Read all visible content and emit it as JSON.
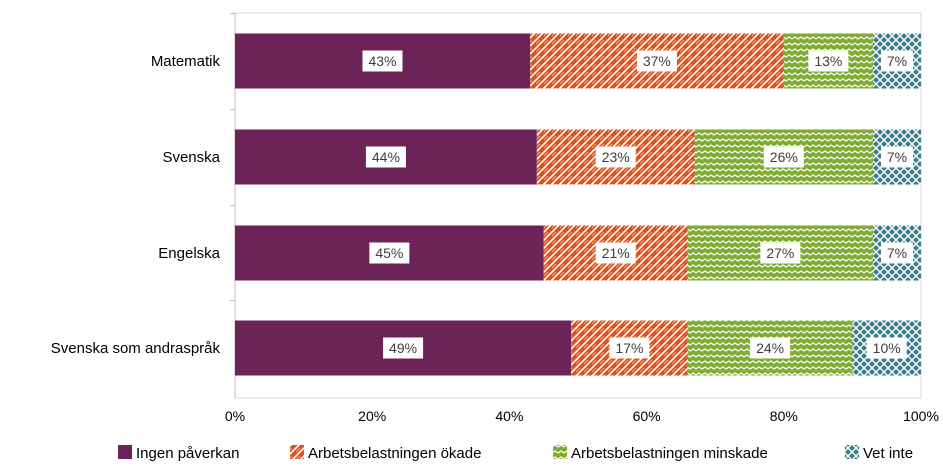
{
  "chart_data": {
    "type": "bar",
    "orientation": "horizontal",
    "stacked": "percent",
    "categories": [
      "Matematik",
      "Svenska",
      "Engelska",
      "Svenska som andraspråk"
    ],
    "series": [
      {
        "name": "Ingen påverkan",
        "values": [
          43,
          44,
          45,
          49
        ],
        "color": "#6b2358",
        "pattern": "solid"
      },
      {
        "name": "Arbetsbelastningen ökade",
        "values": [
          37,
          23,
          21,
          17
        ],
        "color": "#d9541e",
        "pattern": "diagonal-zigzag"
      },
      {
        "name": "Arbetsbelastningen minskade",
        "values": [
          13,
          26,
          27,
          24
        ],
        "color": "#7fad34",
        "pattern": "wave"
      },
      {
        "name": "Vet inte",
        "values": [
          7,
          7,
          7,
          10
        ],
        "color": "#3b7b8c",
        "pattern": "trellis"
      }
    ],
    "data_labels": [
      [
        "43%",
        "37%",
        "13%",
        "7%"
      ],
      [
        "44%",
        "23%",
        "26%",
        "7%"
      ],
      [
        "45%",
        "21%",
        "27%",
        "7%"
      ],
      [
        "49%",
        "17%",
        "24%",
        "10%"
      ]
    ],
    "x_ticks": [
      "0%",
      "20%",
      "40%",
      "60%",
      "80%",
      "100%"
    ],
    "xlim": [
      0,
      100
    ],
    "grid": false,
    "legend_position": "bottom"
  }
}
